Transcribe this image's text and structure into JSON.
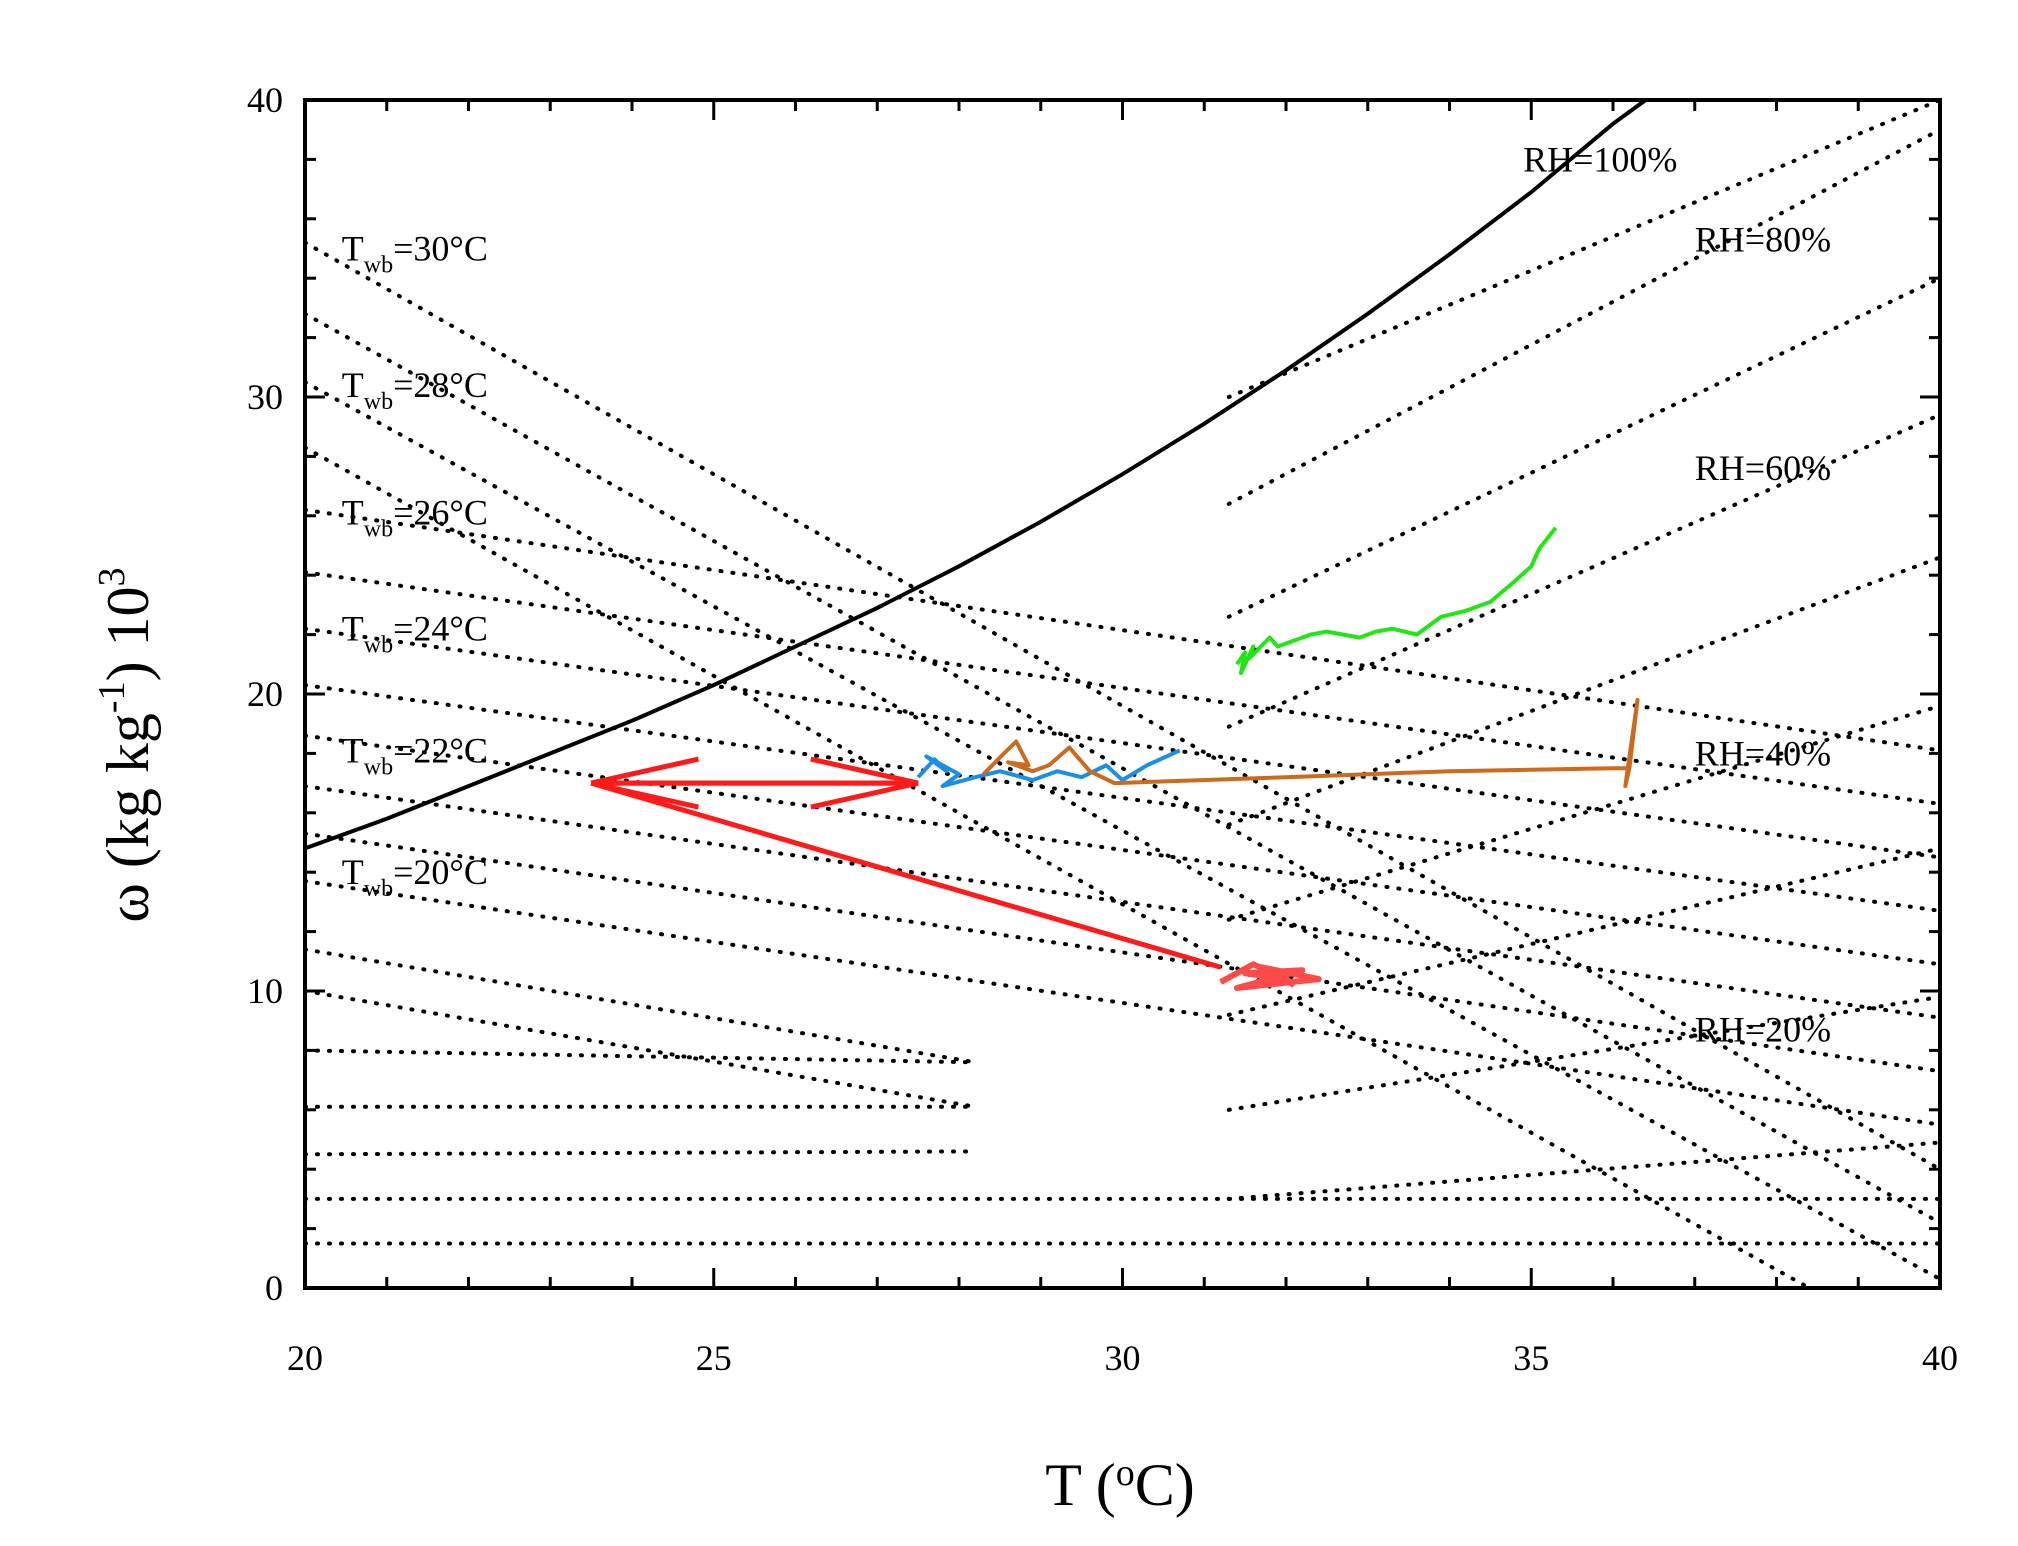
{
  "chart_data": {
    "type": "line",
    "title": "",
    "xlabel": "T (°C)",
    "ylabel": "ω (kg kg⁻¹) 10³",
    "xlim": [
      20,
      40
    ],
    "ylim": [
      0,
      40
    ],
    "xticks": [
      20,
      25,
      30,
      35,
      40
    ],
    "yticks": [
      0,
      10,
      20,
      30,
      40
    ],
    "xtick_labels": [
      "20",
      "25",
      "30",
      "35",
      "40"
    ],
    "ytick_labels": [
      "0",
      "10",
      "20",
      "30",
      "40"
    ],
    "saturation_curve": {
      "name": "RH=100%",
      "x": [
        20,
        21,
        22,
        23,
        24,
        25,
        26,
        27,
        28,
        29,
        30,
        31,
        32,
        33,
        34,
        35,
        36,
        36.4
      ],
      "y": [
        14.8,
        15.8,
        16.9,
        18.0,
        19.1,
        20.3,
        21.6,
        22.9,
        24.3,
        25.8,
        27.4,
        29.1,
        30.9,
        32.8,
        34.8,
        36.9,
        39.2,
        40.0
      ]
    },
    "rh_lines": [
      {
        "name": "RH=80%",
        "x": [
          31.3,
          40
        ],
        "y": [
          26.4,
          39.0
        ]
      },
      {
        "name": "RH=60%",
        "x": [
          31.3,
          40
        ],
        "y": [
          18.9,
          29.4
        ]
      },
      {
        "name": "RH=40%",
        "x": [
          31.3,
          40
        ],
        "y": [
          12.4,
          19.6
        ]
      },
      {
        "name": "RH=20%",
        "x": [
          31.3,
          40
        ],
        "y": [
          6.0,
          9.8
        ]
      },
      {
        "name": "",
        "x": [
          31.3,
          40
        ],
        "y": [
          30.0,
          40.0
        ]
      },
      {
        "name": "",
        "x": [
          31.3,
          40
        ],
        "y": [
          22.6,
          34.0
        ]
      },
      {
        "name": "",
        "x": [
          31.3,
          40
        ],
        "y": [
          15.6,
          24.6
        ]
      },
      {
        "name": "",
        "x": [
          31.3,
          40
        ],
        "y": [
          9.2,
          14.8
        ]
      },
      {
        "name": "",
        "x": [
          31.3,
          40
        ],
        "y": [
          3.0,
          4.9
        ]
      }
    ],
    "twb_lines": [
      {
        "name": "Twb=30°C",
        "x": [
          20,
          40
        ],
        "y": [
          35.2,
          4.0
        ]
      },
      {
        "name": "",
        "x": [
          20,
          40
        ],
        "y": [
          32.8,
          2.2
        ]
      },
      {
        "name": "Twb=28°C",
        "x": [
          20,
          40
        ],
        "y": [
          30.5,
          0.3
        ]
      },
      {
        "name": "",
        "x": [
          20,
          38.4
        ],
        "y": [
          28.3,
          0.0
        ]
      },
      {
        "name": "Twb=26°C",
        "x": [
          20,
          40
        ],
        "y": [
          26.2,
          18.1
        ]
      },
      {
        "name": "",
        "x": [
          20,
          40
        ],
        "y": [
          24.1,
          16.3
        ]
      },
      {
        "name": "Twb=24°C",
        "x": [
          20,
          40
        ],
        "y": [
          22.2,
          14.5
        ]
      },
      {
        "name": "",
        "x": [
          20,
          40
        ],
        "y": [
          20.3,
          12.7
        ]
      },
      {
        "name": "Twb=22°C",
        "x": [
          20,
          40
        ],
        "y": [
          18.6,
          10.9
        ]
      },
      {
        "name": "",
        "x": [
          20,
          40
        ],
        "y": [
          16.9,
          9.1
        ]
      },
      {
        "name": "Twb=20°C",
        "x": [
          20,
          40
        ],
        "y": [
          15.3,
          7.3
        ]
      },
      {
        "name": "",
        "x": [
          20,
          40
        ],
        "y": [
          13.7,
          5.5
        ]
      }
    ],
    "low_lines": [
      {
        "name": "",
        "x": [
          20,
          28.2
        ],
        "y": [
          11.4,
          7.6
        ]
      },
      {
        "name": "",
        "x": [
          20,
          28.2
        ],
        "y": [
          10.0,
          6.1
        ]
      },
      {
        "name": "",
        "x": [
          20,
          28.2
        ],
        "y": [
          8.0,
          7.6
        ]
      },
      {
        "name": "",
        "x": [
          20,
          28.2
        ],
        "y": [
          6.1,
          6.1
        ]
      },
      {
        "name": "",
        "x": [
          20,
          28.2
        ],
        "y": [
          4.5,
          4.6
        ]
      },
      {
        "name": "",
        "x": [
          20,
          40
        ],
        "y": [
          3.0,
          3.0
        ]
      },
      {
        "name": "",
        "x": [
          20,
          40
        ],
        "y": [
          1.5,
          1.5
        ]
      }
    ],
    "series": [
      {
        "name": "green",
        "color": "#22e614",
        "x": [
          31.4,
          31.5,
          31.45,
          31.6,
          31.55,
          31.8,
          31.9,
          32.1,
          32.3,
          32.5,
          32.7,
          32.9,
          33.1,
          33.3,
          33.6,
          33.9,
          34.2,
          34.5,
          34.8,
          35.0,
          35.1,
          35.3
        ],
        "y": [
          21.0,
          21.4,
          20.7,
          21.6,
          21.2,
          21.9,
          21.6,
          21.8,
          22.0,
          22.1,
          22.0,
          21.9,
          22.1,
          22.2,
          22.0,
          22.6,
          22.8,
          23.1,
          23.8,
          24.3,
          24.9,
          25.6
        ]
      },
      {
        "name": "blue",
        "color": "#1a8fe8",
        "x": [
          27.5,
          27.7,
          27.85,
          27.6,
          28.0,
          27.8,
          28.2,
          28.5,
          28.9,
          29.2,
          29.5,
          29.8,
          30.0,
          30.3,
          30.7
        ],
        "y": [
          17.2,
          17.8,
          17.4,
          17.9,
          17.3,
          16.9,
          17.2,
          17.4,
          17.1,
          17.4,
          17.2,
          17.6,
          17.1,
          17.6,
          18.1
        ]
      },
      {
        "name": "brown",
        "color": "#cc6a1e",
        "x": [
          28.3,
          28.55,
          28.7,
          28.85,
          28.6,
          28.9,
          29.1,
          29.35,
          29.6,
          29.9,
          32.0,
          34.0,
          36.0,
          36.2,
          36.15,
          36.3,
          36.2
        ],
        "y": [
          17.3,
          18.0,
          18.4,
          17.6,
          17.7,
          17.4,
          17.6,
          18.2,
          17.4,
          17.0,
          17.2,
          17.4,
          17.5,
          17.5,
          16.9,
          19.8,
          17.5
        ]
      },
      {
        "name": "red-cluster",
        "color": "#ff4a4a",
        "x": [
          31.2,
          31.6,
          32.0,
          31.5,
          32.2,
          31.4,
          32.4,
          31.7,
          32.1
        ],
        "y": [
          10.3,
          10.9,
          10.4,
          10.6,
          10.7,
          10.1,
          10.4,
          10.8,
          10.2
        ]
      }
    ],
    "arrows": [
      {
        "name": "arrow-right",
        "color": "#ff1a1a",
        "from": [
          23.5,
          17.0
        ],
        "to": [
          27.5,
          17.0
        ]
      },
      {
        "name": "arrow-left",
        "color": "#ff1a1a",
        "from": [
          27.5,
          17.0
        ],
        "to": [
          23.5,
          17.0
        ]
      },
      {
        "name": "arrow-diagonal",
        "color": "#ff1a1a",
        "from": [
          31.2,
          10.8
        ],
        "to": [
          23.5,
          17.0
        ]
      }
    ],
    "annotations": [
      {
        "text": "RH=100%",
        "x": 34.9,
        "y": 37.6
      },
      {
        "text": "RH=80%",
        "x": 37.0,
        "y": 34.9
      },
      {
        "text": "RH=60%",
        "x": 37.0,
        "y": 27.2
      },
      {
        "text": "RH=40%",
        "x": 37.0,
        "y": 17.6
      },
      {
        "text": "RH=20%",
        "x": 37.0,
        "y": 8.3
      }
    ],
    "twb_labels": [
      {
        "main": "T",
        "sub": "wb",
        "rest": "=30°C",
        "x": 20.45,
        "y": 34.6
      },
      {
        "main": "T",
        "sub": "wb",
        "rest": "=28°C",
        "x": 20.45,
        "y": 30.0
      },
      {
        "main": "T",
        "sub": "wb",
        "rest": "=26°C",
        "x": 20.45,
        "y": 25.7
      },
      {
        "main": "T",
        "sub": "wb",
        "rest": "=24°C",
        "x": 20.45,
        "y": 21.8
      },
      {
        "main": "T",
        "sub": "wb",
        "rest": "=22°C",
        "x": 20.45,
        "y": 17.7
      },
      {
        "main": "T",
        "sub": "wb",
        "rest": "=20°C",
        "x": 20.45,
        "y": 13.6
      }
    ]
  }
}
